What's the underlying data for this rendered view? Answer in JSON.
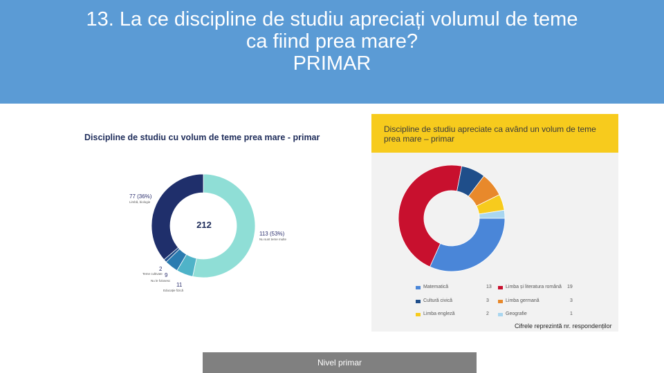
{
  "slide": {
    "title_line1": "13. La ce discipline de studiu apreciați volumul de teme",
    "title_line2": "ca fiind prea mare?",
    "title_line3": "PRIMAR",
    "note": "Cifrele reprezintă nr. respondenților",
    "footer": "Nivel primar"
  },
  "colors": {
    "header_bg": "#5b9bd5",
    "footer_bg": "#808080",
    "chart2_header": "#f7cb1d"
  },
  "chart_data": [
    {
      "type": "pie",
      "title": "Discipline de studiu cu volum de teme prea mare - primar",
      "total_label": "212",
      "slices": [
        {
          "name": "Nu sunt teme multe",
          "value": 113,
          "label": "113 (53%)",
          "color": "#8fded6"
        },
        {
          "name": "Educație fizică",
          "value": 11,
          "label": "11",
          "color": "#4fb3c8"
        },
        {
          "name": "Nu le folosesc",
          "value": 9,
          "label": "9",
          "color": "#2a7bb0"
        },
        {
          "name": "Teme cultivate",
          "value": 2,
          "label": "2",
          "color": "#1f4e8a"
        },
        {
          "name": "Limbă, biologie",
          "value": 77,
          "label": "77 (36%)",
          "color": "#1f2f6b"
        }
      ]
    },
    {
      "type": "pie",
      "title": "Discipline de studiu apreciate ca având un volum de teme prea mare – primar",
      "slices": [
        {
          "name": "Matematică",
          "value": 13,
          "label": "13",
          "color": "#4a86d8"
        },
        {
          "name": "Limba și literatura română",
          "value": 19,
          "label": "19",
          "color": "#c8102e"
        },
        {
          "name": "Cultură civică",
          "value": 3,
          "label": "3",
          "color": "#1f4e8a"
        },
        {
          "name": "Limba germană",
          "value": 3,
          "label": "3",
          "color": "#e8892b"
        },
        {
          "name": "Limba engleză",
          "value": 2,
          "label": "2",
          "color": "#f7cb1d"
        },
        {
          "name": "Geografie",
          "value": 1,
          "label": "1",
          "color": "#a9d6f0"
        }
      ]
    }
  ]
}
